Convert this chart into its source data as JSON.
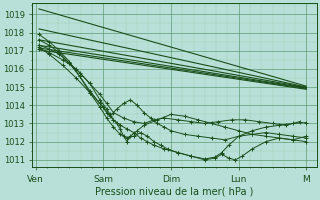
{
  "background_color": "#b8e0d8",
  "grid_color_major": "#4a8a5a",
  "grid_color_minor": "#7abf8a",
  "line_color": "#1a4e1a",
  "title": "Pression niveau de la mer( hPa )",
  "x_labels": [
    "Ven",
    "Sam",
    "Dim",
    "Lun",
    "M"
  ],
  "x_ticks": [
    0,
    1,
    2,
    3,
    4
  ],
  "ylim": [
    1010.6,
    1019.6
  ],
  "yticks": [
    1011,
    1012,
    1013,
    1014,
    1015,
    1016,
    1017,
    1018,
    1019
  ],
  "xlim": [
    -0.05,
    4.15
  ],
  "straight_lines": [
    [
      1019.3,
      1015.05
    ],
    [
      1018.2,
      1015.0
    ],
    [
      1017.6,
      1014.98
    ],
    [
      1017.3,
      1014.95
    ],
    [
      1017.15,
      1014.92
    ],
    [
      1017.05,
      1014.88
    ]
  ],
  "noisy_lines": [
    {
      "x": [
        0.05,
        0.2,
        0.35,
        0.5,
        0.65,
        0.8,
        0.95,
        1.05,
        1.15,
        1.3,
        1.45,
        1.6,
        1.75,
        1.9,
        2.1,
        2.3,
        2.5,
        2.7,
        2.9,
        3.1,
        3.3,
        3.5,
        3.7,
        3.9
      ],
      "y": [
        1017.3,
        1017.1,
        1016.8,
        1016.3,
        1015.8,
        1015.2,
        1014.6,
        1014.1,
        1013.6,
        1013.3,
        1013.1,
        1013.0,
        1013.2,
        1013.3,
        1013.2,
        1013.1,
        1013.0,
        1013.1,
        1013.2,
        1013.2,
        1013.1,
        1013.0,
        1012.9,
        1013.1
      ]
    },
    {
      "x": [
        0.05,
        0.2,
        0.35,
        0.5,
        0.65,
        0.8,
        0.95,
        1.05,
        1.15,
        1.25,
        1.35,
        1.45,
        1.55,
        1.65,
        1.75,
        1.9,
        2.1,
        2.3,
        2.5,
        2.65,
        2.75,
        2.85,
        3.0,
        3.2,
        3.4,
        3.6,
        3.8,
        4.0
      ],
      "y": [
        1017.6,
        1017.3,
        1016.9,
        1016.3,
        1015.6,
        1014.8,
        1014.1,
        1013.6,
        1013.2,
        1012.9,
        1012.7,
        1012.5,
        1012.2,
        1012.0,
        1011.8,
        1011.6,
        1011.4,
        1011.2,
        1011.05,
        1011.15,
        1011.4,
        1011.8,
        1012.3,
        1012.6,
        1012.8,
        1012.9,
        1013.0,
        1013.05
      ]
    },
    {
      "x": [
        0.05,
        0.2,
        0.35,
        0.5,
        0.65,
        0.8,
        0.95,
        1.05,
        1.15,
        1.25,
        1.35,
        1.45,
        1.55,
        1.65,
        1.75,
        1.85,
        1.95,
        2.1,
        2.3,
        2.5,
        2.65,
        2.75,
        2.85,
        2.95,
        3.05,
        3.2,
        3.4,
        3.6,
        3.8,
        4.0
      ],
      "y": [
        1017.9,
        1017.5,
        1017.0,
        1016.4,
        1015.6,
        1014.7,
        1013.9,
        1013.3,
        1012.8,
        1012.4,
        1012.2,
        1012.3,
        1012.5,
        1012.3,
        1012.0,
        1011.8,
        1011.6,
        1011.4,
        1011.2,
        1011.0,
        1011.1,
        1011.3,
        1011.1,
        1011.0,
        1011.2,
        1011.6,
        1012.0,
        1012.2,
        1012.1,
        1012.0
      ]
    },
    {
      "x": [
        0.05,
        0.2,
        0.4,
        0.6,
        0.8,
        0.95,
        1.05,
        1.1,
        1.15,
        1.2,
        1.25,
        1.3,
        1.35,
        1.4,
        1.5,
        1.6,
        1.8,
        2.0,
        2.2,
        2.4,
        2.6,
        2.8,
        3.0,
        3.2,
        3.4,
        3.6,
        3.8,
        4.0
      ],
      "y": [
        1017.1,
        1016.9,
        1016.5,
        1016.0,
        1015.2,
        1014.3,
        1013.8,
        1013.5,
        1013.2,
        1013.0,
        1012.7,
        1012.3,
        1012.0,
        1012.3,
        1012.6,
        1012.9,
        1013.2,
        1013.5,
        1013.4,
        1013.2,
        1013.0,
        1012.8,
        1012.6,
        1012.4,
        1012.3,
        1012.2,
        1012.1,
        1012.3
      ]
    },
    {
      "x": [
        0.05,
        0.2,
        0.4,
        0.6,
        0.8,
        1.0,
        1.1,
        1.2,
        1.3,
        1.4,
        1.5,
        1.6,
        1.7,
        1.8,
        1.9,
        2.0,
        2.2,
        2.4,
        2.6,
        2.8,
        3.0,
        3.2,
        3.4,
        3.6,
        3.8,
        4.0
      ],
      "y": [
        1017.2,
        1016.8,
        1016.2,
        1015.5,
        1014.7,
        1013.9,
        1013.4,
        1013.8,
        1014.1,
        1014.3,
        1014.0,
        1013.6,
        1013.3,
        1013.0,
        1012.8,
        1012.6,
        1012.4,
        1012.3,
        1012.2,
        1012.1,
        1012.3,
        1012.4,
        1012.5,
        1012.4,
        1012.3,
        1012.2
      ]
    }
  ]
}
